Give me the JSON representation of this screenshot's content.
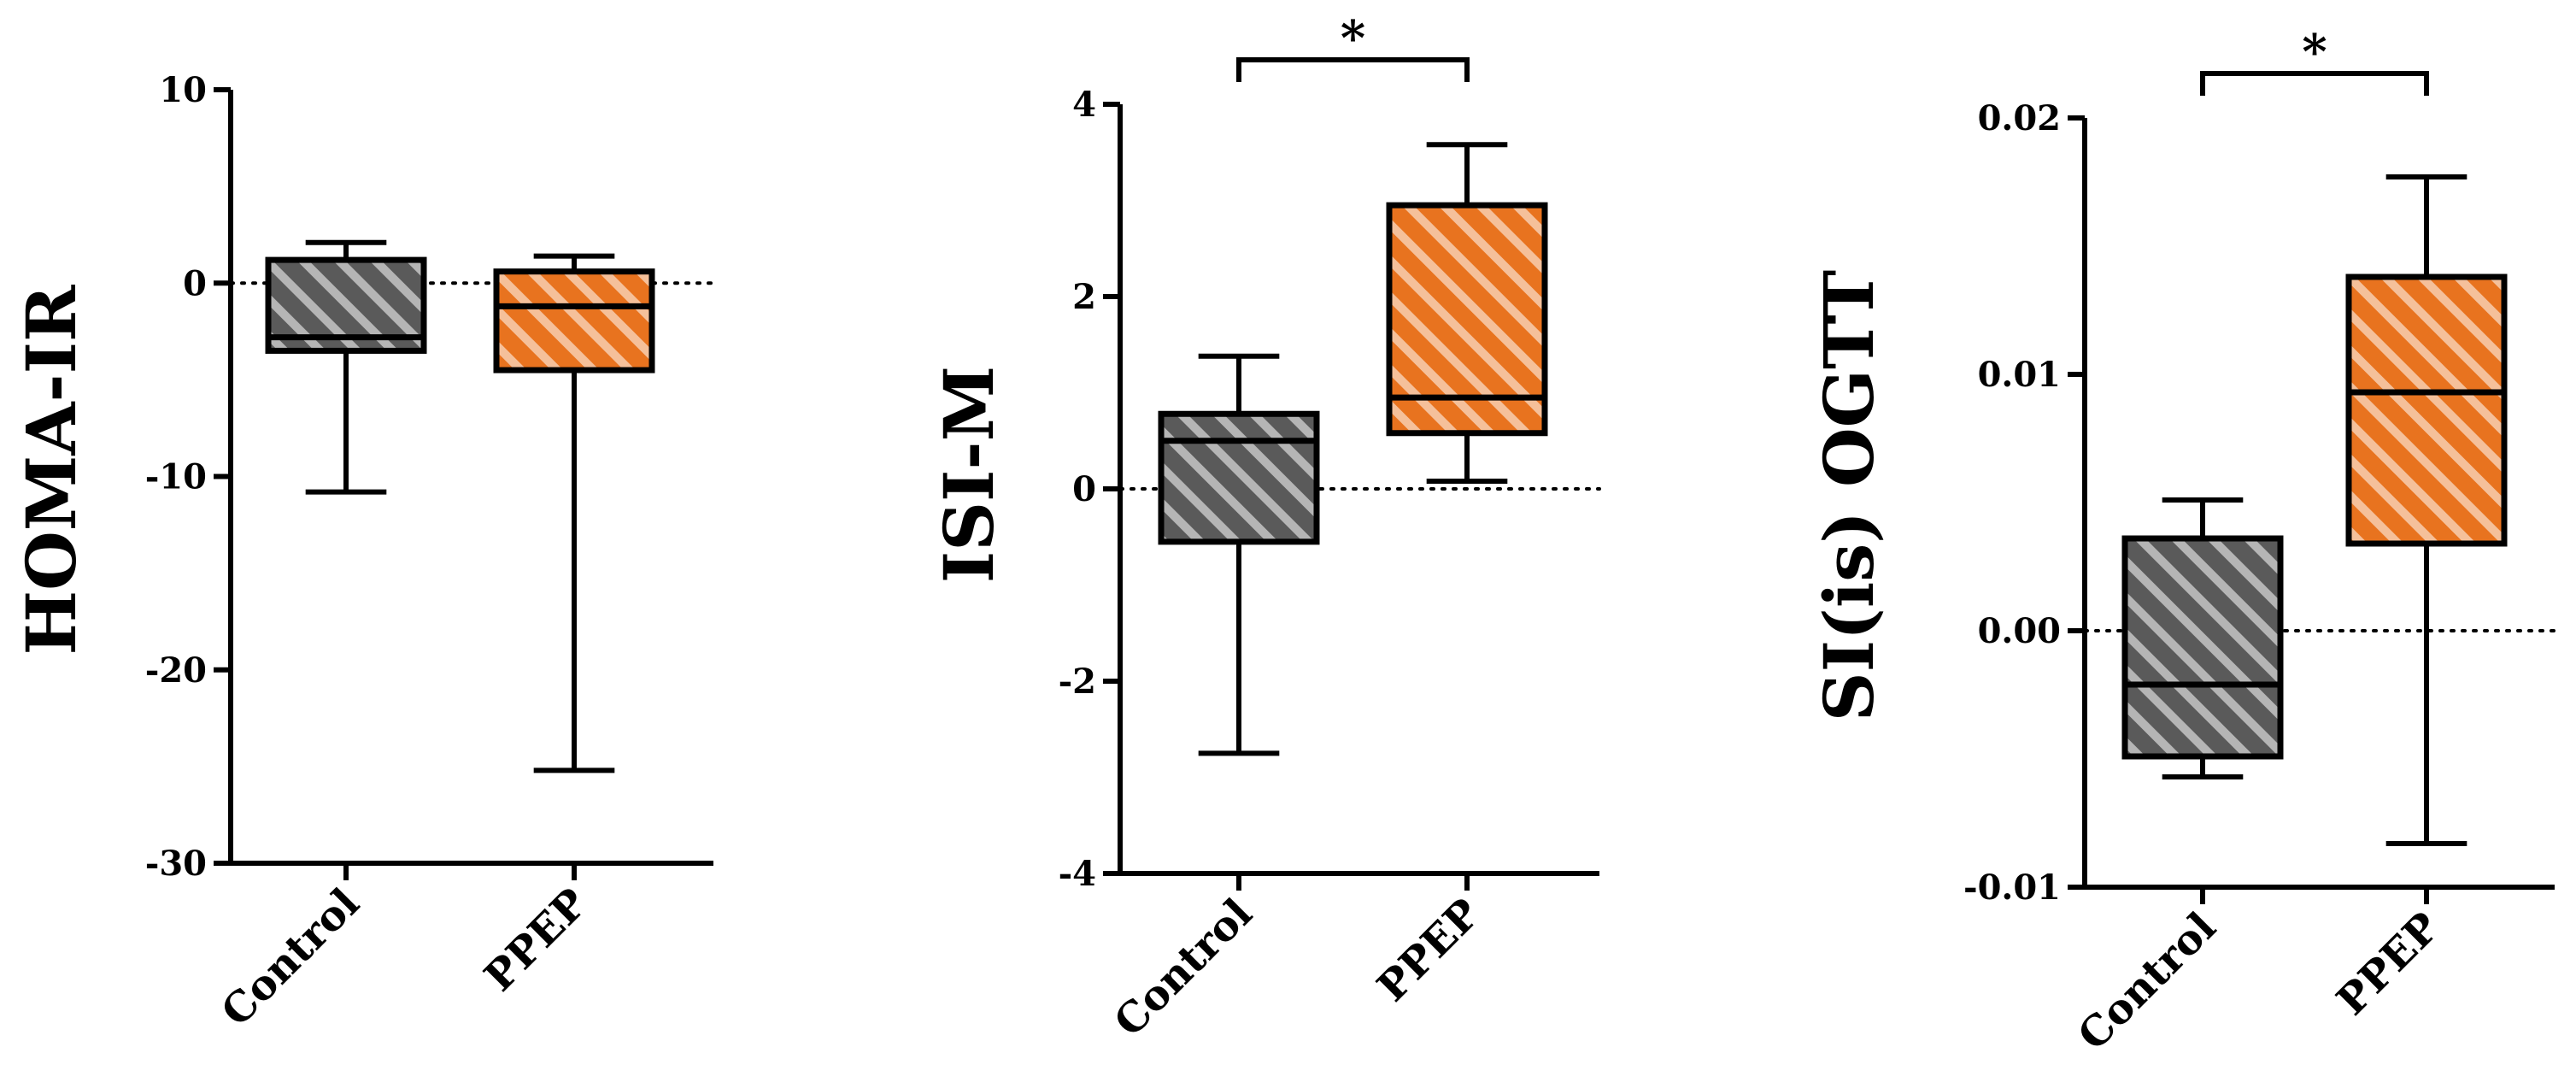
{
  "colors": {
    "control_fill": "#5a5a5a",
    "ppep_fill": "#e8731f",
    "hatch": "#ffffff",
    "line": "#000000"
  },
  "chart_data": [
    {
      "type": "boxplot",
      "ylabel": "HOMA-IR",
      "ylim": [
        -30,
        10
      ],
      "yticks": [
        "10",
        "0",
        "-10",
        "-20",
        "-30"
      ],
      "ytick_values": [
        10,
        0,
        -10,
        -20,
        -30
      ],
      "categories": [
        "Control",
        "PPEP"
      ],
      "boxes": [
        {
          "category": "Control",
          "min": -10.8,
          "q1": -3.5,
          "median": -2.8,
          "q3": 1.2,
          "max": 2.1
        },
        {
          "category": "PPEP",
          "min": -25.2,
          "q1": -4.5,
          "median": -1.2,
          "q3": 0.6,
          "max": 1.4
        }
      ],
      "reference_line": 0,
      "significance": null
    },
    {
      "type": "boxplot",
      "ylabel": "ISI-M",
      "ylim": [
        -4,
        4
      ],
      "yticks": [
        "4",
        "2",
        "0",
        "-2",
        "-4"
      ],
      "ytick_values": [
        4,
        2,
        0,
        -2,
        -4
      ],
      "categories": [
        "Control",
        "PPEP"
      ],
      "boxes": [
        {
          "category": "Control",
          "min": -2.75,
          "q1": -0.55,
          "median": 0.5,
          "q3": 0.78,
          "max": 1.38
        },
        {
          "category": "PPEP",
          "min": 0.08,
          "q1": 0.58,
          "median": 0.95,
          "q3": 2.95,
          "max": 3.58
        }
      ],
      "reference_line": 0,
      "significance": "*"
    },
    {
      "type": "boxplot",
      "ylabel": "SI(is) OGTT",
      "ylim": [
        -0.01,
        0.02
      ],
      "yticks": [
        "0.02",
        "0.01",
        "0.00",
        "-0.01"
      ],
      "ytick_values": [
        0.02,
        0.01,
        0.0,
        -0.01
      ],
      "categories": [
        "Control",
        "PPEP"
      ],
      "boxes": [
        {
          "category": "Control",
          "min": -0.0057,
          "q1": -0.0049,
          "median": -0.0021,
          "q3": 0.0036,
          "max": 0.0051
        },
        {
          "category": "PPEP",
          "min": -0.0083,
          "q1": 0.0034,
          "median": 0.0093,
          "q3": 0.0138,
          "max": 0.0177
        }
      ],
      "reference_line": 0,
      "significance": "*"
    }
  ]
}
